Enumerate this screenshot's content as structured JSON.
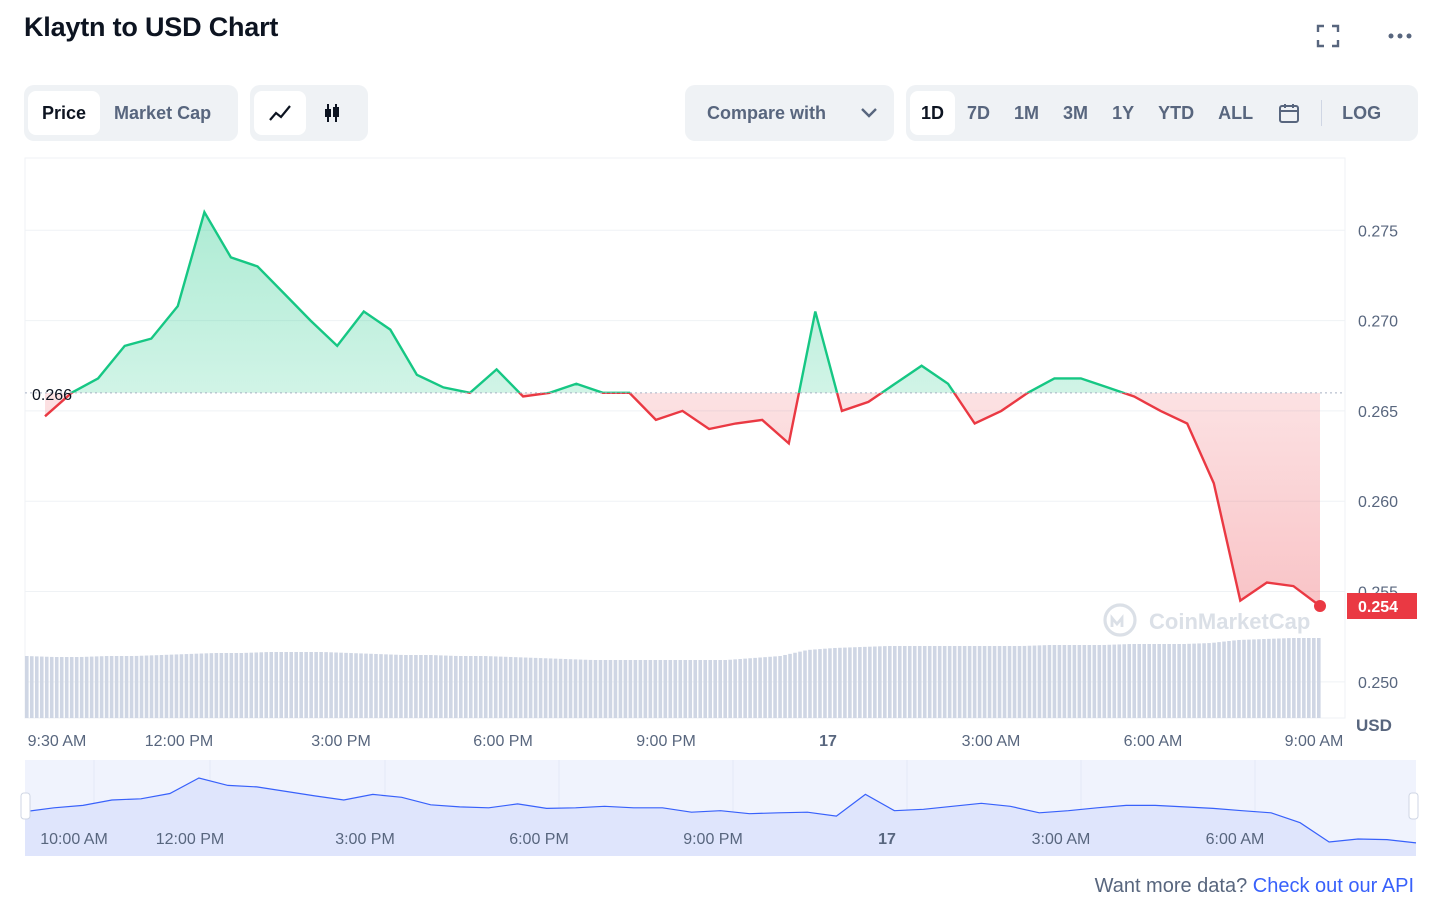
{
  "header": {
    "title": "Klaytn to USD Chart",
    "expand_icon": "expand-icon",
    "more_icon": "more-dots-icon"
  },
  "toolbar": {
    "metric_tabs": [
      {
        "label": "Price",
        "active": true
      },
      {
        "label": "Market Cap",
        "active": false
      }
    ],
    "chart_style": [
      {
        "icon": "line-chart-icon",
        "active": true
      },
      {
        "icon": "candlestick-icon",
        "active": false
      }
    ],
    "compare_label": "Compare with",
    "ranges": [
      {
        "label": "1D",
        "active": true
      },
      {
        "label": "7D",
        "active": false
      },
      {
        "label": "1M",
        "active": false
      },
      {
        "label": "3M",
        "active": false
      },
      {
        "label": "1Y",
        "active": false
      },
      {
        "label": "YTD",
        "active": false
      },
      {
        "label": "ALL",
        "active": false
      }
    ],
    "calendar_icon": "calendar-icon",
    "log_label": "LOG"
  },
  "chart_data": {
    "type": "line",
    "series": [
      {
        "name": "Price",
        "x": [
          "9:30 AM",
          "10:00 AM",
          "10:30 AM",
          "11:00 AM",
          "11:30 AM",
          "12:00 PM",
          "12:30 PM",
          "1:00 PM",
          "1:30 PM",
          "2:00 PM",
          "2:30 PM",
          "3:00 PM",
          "3:30 PM",
          "4:00 PM",
          "4:30 PM",
          "5:00 PM",
          "5:30 PM",
          "6:00 PM",
          "6:30 PM",
          "7:00 PM",
          "7:30 PM",
          "8:00 PM",
          "8:30 PM",
          "9:00 PM",
          "9:30 PM",
          "10:00 PM",
          "10:30 PM",
          "11:00 PM",
          "11:30 PM",
          "12:00 AM",
          "12:30 AM",
          "1:00 AM",
          "1:30 AM",
          "2:00 AM",
          "2:30 AM",
          "3:00 AM",
          "3:30 AM",
          "4:00 AM",
          "4:30 AM",
          "5:00 AM",
          "5:30 AM",
          "6:00 AM",
          "6:30 AM",
          "7:00 AM",
          "7:30 AM",
          "8:00 AM",
          "8:30 AM",
          "9:00 AM",
          "9:20 AM"
        ],
        "values": [
          0.2647,
          0.266,
          0.2668,
          0.2686,
          0.269,
          0.2708,
          0.276,
          0.2735,
          0.273,
          0.2715,
          0.27,
          0.2686,
          0.2705,
          0.2695,
          0.267,
          0.2663,
          0.266,
          0.2673,
          0.2658,
          0.266,
          0.2665,
          0.266,
          0.266,
          0.2645,
          0.265,
          0.264,
          0.2643,
          0.2645,
          0.2632,
          0.2705,
          0.265,
          0.2655,
          0.2665,
          0.2675,
          0.2665,
          0.2643,
          0.265,
          0.266,
          0.2668,
          0.2668,
          0.2663,
          0.2658,
          0.265,
          0.2643,
          0.261,
          0.2545,
          0.2555,
          0.2553,
          0.2542
        ]
      }
    ],
    "baseline": 0.266,
    "baseline_label": "0.266",
    "current_label": "0.254",
    "y_ticks": [
      "0.275",
      "0.270",
      "0.265",
      "0.260",
      "0.255",
      "0.250"
    ],
    "y_unit": "USD",
    "ylim": [
      0.248,
      0.279
    ],
    "x_ticks": [
      "9:30 AM",
      "12:00 PM",
      "3:00 PM",
      "6:00 PM",
      "9:00 PM",
      "17",
      "3:00 AM",
      "6:00 AM",
      "9:00 AM"
    ],
    "volume_relative": [
      0.62,
      0.61,
      0.61,
      0.62,
      0.62,
      0.63,
      0.64,
      0.65,
      0.65,
      0.66,
      0.66,
      0.66,
      0.65,
      0.64,
      0.63,
      0.63,
      0.62,
      0.62,
      0.61,
      0.6,
      0.59,
      0.58,
      0.58,
      0.58,
      0.58,
      0.58,
      0.58,
      0.6,
      0.62,
      0.68,
      0.7,
      0.71,
      0.72,
      0.72,
      0.72,
      0.72,
      0.72,
      0.72,
      0.73,
      0.73,
      0.73,
      0.74,
      0.74,
      0.74,
      0.75,
      0.78,
      0.79,
      0.8,
      0.8
    ],
    "navigator_ticks": [
      "10:00 AM",
      "12:00 PM",
      "3:00 PM",
      "6:00 PM",
      "9:00 PM",
      "17",
      "3:00 AM",
      "6:00 AM"
    ],
    "grid": true,
    "watermark": "CoinMarketCap"
  },
  "footer": {
    "prefix": "Want more data?",
    "link": "Check out our API"
  },
  "colors": {
    "up": "#16c784",
    "down": "#ea3943",
    "grid": "#eff2f5",
    "navigator": "#dfe5fc",
    "volume": "#cfd6e4"
  }
}
